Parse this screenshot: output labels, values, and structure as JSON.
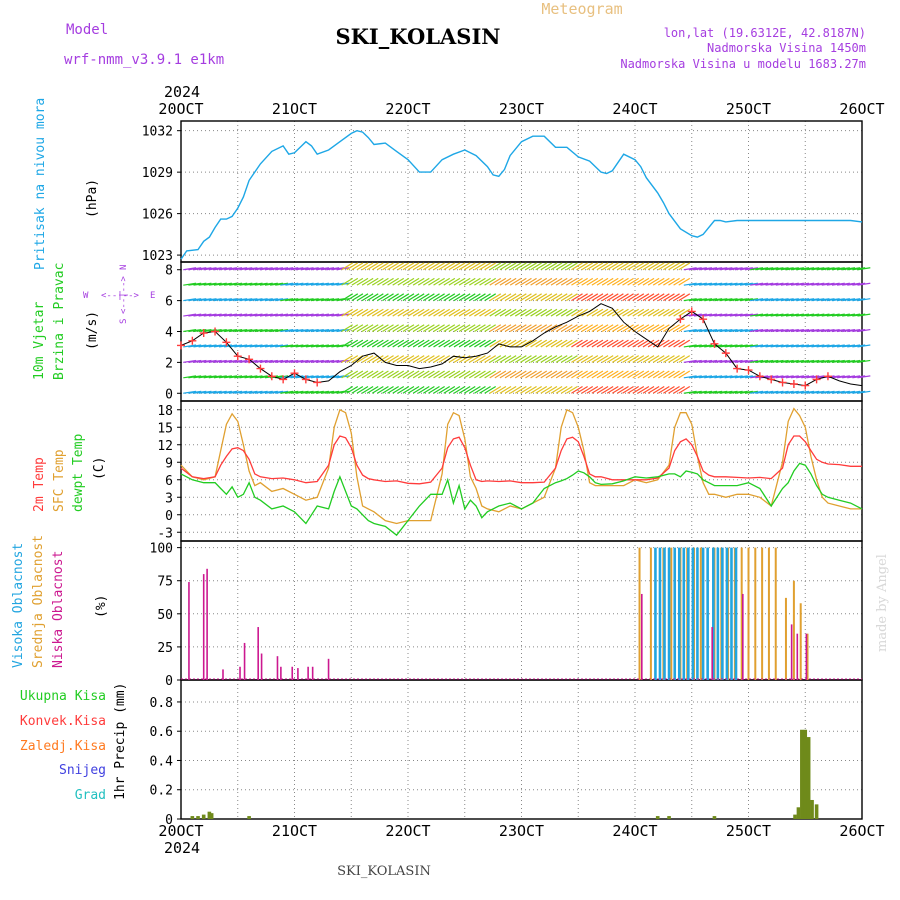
{
  "header": {
    "model_label": "Model",
    "model_name": "wrf-nmm_v3.9.1 e1km",
    "title": "SKI_KOLASIN",
    "meteogram_label": "Meteogram",
    "lonlat": "lon,lat (19.6312E, 42.8187N)",
    "altitude": "Nadmorska Visina 1450m",
    "model_altitude": "Nadmorska Visina u modelu 1683.27m",
    "footer_title": "SKI_KOLASIN",
    "watermark": "made by Angel",
    "year_top": "2024",
    "year_bottom": "2024"
  },
  "colors": {
    "pressure": "#1ea7e6",
    "temp2m": "#ff3b3b",
    "sfc_temp": "#e0a030",
    "dewpt": "#22cc22",
    "high_cloud": "#22a5e0",
    "mid_cloud": "#e0a030",
    "low_cloud": "#cc1890",
    "precip": "#6f8a1a",
    "wind_axis": "#a53de0"
  },
  "chart_data": [
    {
      "type": "line",
      "title": "",
      "xlabel": "",
      "ylabel_main": "Pritisak na nivou mora",
      "ylabel_unit": "(hPa)",
      "x_ticks": [
        "20OCT",
        "21OCT",
        "22OCT",
        "23OCT",
        "24OCT",
        "25OCT",
        "26OCT"
      ],
      "x_range_days": [
        0,
        6
      ],
      "ylim": [
        1022.5,
        1032.7
      ],
      "y_ticks": [
        1023,
        1026,
        1029,
        1032
      ],
      "grid": true,
      "series": [
        {
          "name": "Pritisak na nivou mora",
          "x": [
            0.0,
            0.05,
            0.15,
            0.2,
            0.25,
            0.3,
            0.35,
            0.4,
            0.45,
            0.5,
            0.55,
            0.6,
            0.7,
            0.8,
            0.9,
            0.95,
            1.0,
            1.05,
            1.1,
            1.15,
            1.2,
            1.3,
            1.4,
            1.5,
            1.55,
            1.6,
            1.65,
            1.7,
            1.8,
            1.9,
            2.0,
            2.1,
            2.2,
            2.3,
            2.4,
            2.5,
            2.6,
            2.7,
            2.75,
            2.8,
            2.85,
            2.9,
            3.0,
            3.1,
            3.2,
            3.3,
            3.4,
            3.5,
            3.6,
            3.7,
            3.75,
            3.8,
            3.9,
            4.0,
            4.05,
            4.1,
            4.2,
            4.25,
            4.3,
            4.4,
            4.5,
            4.55,
            4.6,
            4.7,
            4.75,
            4.8,
            4.9,
            5.0,
            5.1,
            5.2,
            5.25,
            5.3,
            5.4,
            5.5,
            5.55,
            5.6,
            5.7,
            5.8,
            5.9,
            6.0
          ],
          "values": [
            1022.7,
            1023.3,
            1023.4,
            1024.0,
            1024.3,
            1025.0,
            1025.6,
            1025.6,
            1025.8,
            1026.4,
            1027.2,
            1028.4,
            1029.6,
            1030.5,
            1030.9,
            1030.3,
            1030.4,
            1030.8,
            1031.2,
            1030.9,
            1030.3,
            1030.6,
            1031.2,
            1031.8,
            1032.0,
            1031.9,
            1031.5,
            1031.0,
            1031.1,
            1030.5,
            1029.9,
            1029.0,
            1029.0,
            1029.9,
            1030.3,
            1030.6,
            1030.2,
            1029.4,
            1028.8,
            1028.7,
            1029.2,
            1030.2,
            1031.2,
            1031.6,
            1031.6,
            1030.8,
            1030.8,
            1030.1,
            1029.8,
            1029.0,
            1028.9,
            1029.1,
            1030.3,
            1029.9,
            1029.4,
            1028.6,
            1027.5,
            1026.8,
            1026.0,
            1024.9,
            1024.4,
            1024.3,
            1024.5,
            1025.5,
            1025.5,
            1025.4,
            1025.5,
            1025.5,
            1025.5,
            1025.5,
            1025.5,
            1025.5,
            1025.5,
            1025.5,
            1025.5,
            1025.5,
            1025.5,
            1025.5,
            1025.5,
            1025.4
          ]
        }
      ]
    },
    {
      "type": "line",
      "title": "",
      "ylabel_main": "10m Vjetar",
      "ylabel_sub": "Brzina i Pravac",
      "ylabel_unit": "(m/s)",
      "direction_legend": [
        "W",
        "<--|-->",
        "E",
        "S",
        "<--|-->",
        "N"
      ],
      "ylim": [
        -0.5,
        8.5
      ],
      "y_ticks": [
        0,
        2,
        4,
        6,
        8
      ],
      "grid": true,
      "series": [
        {
          "name": "10m Vjetar",
          "x": [
            0.0,
            0.1,
            0.2,
            0.3,
            0.4,
            0.5,
            0.6,
            0.7,
            0.8,
            0.9,
            1.0,
            1.1,
            1.2,
            1.3,
            1.4,
            1.5,
            1.6,
            1.7,
            1.8,
            1.9,
            2.0,
            2.1,
            2.2,
            2.3,
            2.4,
            2.5,
            2.6,
            2.7,
            2.8,
            2.9,
            3.0,
            3.1,
            3.2,
            3.3,
            3.4,
            3.5,
            3.6,
            3.7,
            3.8,
            3.9,
            4.0,
            4.1,
            4.2,
            4.3,
            4.4,
            4.5,
            4.6,
            4.7,
            4.8,
            4.9,
            5.0,
            5.1,
            5.2,
            5.3,
            5.4,
            5.5,
            5.6,
            5.7,
            5.8,
            5.9,
            6.0
          ],
          "values": [
            3.1,
            3.4,
            3.9,
            4.0,
            3.3,
            2.4,
            2.2,
            1.6,
            1.1,
            0.9,
            1.3,
            0.9,
            0.7,
            0.8,
            1.4,
            1.8,
            2.4,
            2.6,
            2.0,
            1.8,
            1.8,
            1.6,
            1.7,
            1.9,
            2.4,
            2.3,
            2.4,
            2.6,
            3.2,
            3.0,
            3.0,
            3.4,
            3.9,
            4.3,
            4.6,
            5.0,
            5.3,
            5.8,
            5.5,
            4.6,
            4.0,
            3.5,
            3.0,
            4.2,
            4.8,
            5.3,
            4.8,
            3.2,
            2.6,
            1.6,
            1.5,
            1.1,
            0.9,
            0.7,
            0.6,
            0.5,
            0.9,
            1.1,
            0.8,
            0.6,
            0.5
          ]
        }
      ]
    },
    {
      "type": "line",
      "title": "",
      "ylabel_a": "2m Temp",
      "ylabel_b": "SFC Temp",
      "ylabel_c": "dewpt Temp",
      "ylabel_unit": "(C)",
      "ylim": [
        -4.5,
        19.5
      ],
      "y_ticks": [
        -3,
        0,
        3,
        6,
        9,
        12,
        15,
        18
      ],
      "grid": true,
      "x": [
        0.0,
        0.1,
        0.2,
        0.3,
        0.35,
        0.4,
        0.45,
        0.5,
        0.55,
        0.6,
        0.65,
        0.7,
        0.8,
        0.9,
        1.0,
        1.1,
        1.2,
        1.3,
        1.35,
        1.4,
        1.45,
        1.5,
        1.55,
        1.6,
        1.65,
        1.7,
        1.8,
        1.9,
        2.0,
        2.1,
        2.2,
        2.3,
        2.35,
        2.4,
        2.45,
        2.5,
        2.55,
        2.6,
        2.65,
        2.7,
        2.8,
        2.9,
        3.0,
        3.1,
        3.2,
        3.3,
        3.35,
        3.4,
        3.45,
        3.5,
        3.55,
        3.6,
        3.65,
        3.7,
        3.8,
        3.9,
        4.0,
        4.1,
        4.2,
        4.3,
        4.35,
        4.4,
        4.45,
        4.5,
        4.55,
        4.6,
        4.65,
        4.7,
        4.8,
        4.9,
        5.0,
        5.1,
        5.2,
        5.3,
        5.35,
        5.4,
        5.45,
        5.5,
        5.55,
        5.6,
        5.65,
        5.7,
        5.8,
        5.9,
        6.0
      ],
      "series": [
        {
          "name": "2m Temp",
          "values": [
            8.0,
            6.5,
            6.2,
            6.5,
            8.5,
            10.0,
            11.3,
            11.5,
            11.0,
            9.5,
            7.0,
            6.5,
            6.2,
            6.3,
            6.0,
            5.5,
            5.7,
            8.5,
            12.0,
            13.5,
            13.2,
            11.5,
            8.5,
            6.8,
            6.2,
            6.0,
            5.7,
            5.8,
            5.4,
            5.3,
            5.6,
            8.0,
            11.5,
            13.0,
            13.3,
            11.5,
            8.5,
            6.0,
            5.7,
            5.8,
            5.7,
            5.8,
            5.5,
            5.5,
            5.6,
            8.0,
            11.0,
            13.0,
            13.3,
            12.5,
            10.0,
            7.0,
            6.5,
            6.5,
            6.0,
            6.0,
            6.0,
            6.0,
            6.3,
            8.0,
            11.0,
            12.5,
            13.0,
            12.0,
            10.0,
            7.5,
            6.8,
            6.5,
            6.5,
            6.4,
            6.3,
            6.4,
            6.2,
            8.0,
            12.0,
            13.5,
            13.5,
            12.5,
            11.0,
            9.5,
            9.0,
            8.7,
            8.6,
            8.3,
            8.3
          ]
        },
        {
          "name": "SFC Temp",
          "values": [
            8.5,
            6.5,
            6.0,
            6.5,
            11.0,
            15.5,
            17.3,
            16.0,
            12.0,
            7.5,
            5.0,
            5.5,
            4.0,
            4.5,
            3.5,
            2.5,
            3.0,
            8.0,
            15.0,
            18.0,
            17.5,
            14.0,
            6.5,
            1.5,
            1.0,
            0.5,
            -1.0,
            -1.5,
            -1.0,
            -1.0,
            -1.0,
            7.0,
            15.5,
            17.5,
            17.0,
            13.0,
            6.5,
            4.5,
            1.5,
            1.0,
            0.5,
            1.5,
            1.0,
            2.0,
            3.0,
            8.0,
            15.0,
            18.0,
            17.5,
            15.0,
            11.0,
            5.5,
            5.0,
            5.0,
            5.0,
            5.0,
            6.0,
            5.5,
            6.0,
            8.5,
            15.0,
            17.5,
            17.5,
            15.5,
            10.0,
            5.5,
            3.5,
            3.5,
            3.0,
            3.5,
            3.5,
            3.0,
            1.5,
            9.0,
            16.0,
            18.2,
            17.0,
            15.0,
            10.0,
            6.0,
            3.0,
            2.0,
            1.5,
            1.0,
            1.0
          ]
        },
        {
          "name": "dewpt Temp",
          "values": [
            7.0,
            6.0,
            5.5,
            5.5,
            4.5,
            3.5,
            4.8,
            3.0,
            3.5,
            5.5,
            3.0,
            2.5,
            1.0,
            1.5,
            0.5,
            -1.5,
            1.5,
            1.0,
            4.0,
            6.5,
            4.0,
            1.5,
            1.0,
            0.0,
            -1.0,
            -1.5,
            -2.0,
            -3.5,
            -1.0,
            1.5,
            3.5,
            3.5,
            6.0,
            2.0,
            5.0,
            1.0,
            2.5,
            1.5,
            -0.5,
            0.5,
            1.5,
            2.0,
            1.0,
            2.0,
            4.5,
            5.5,
            5.8,
            6.2,
            6.8,
            7.5,
            7.2,
            6.5,
            5.5,
            5.2,
            5.3,
            5.8,
            6.5,
            6.3,
            6.5,
            7.0,
            7.0,
            6.5,
            7.5,
            7.3,
            7.0,
            6.0,
            5.5,
            5.0,
            5.0,
            5.0,
            5.5,
            4.5,
            1.5,
            4.5,
            5.5,
            7.5,
            8.8,
            8.5,
            7.0,
            5.0,
            3.5,
            3.0,
            2.5,
            2.0,
            1.0
          ]
        }
      ]
    },
    {
      "type": "bar",
      "title": "",
      "ylabel_a": "Visoka Oblacnost",
      "ylabel_b": "Srednja Oblacnost",
      "ylabel_c": "Niska Oblacnost",
      "ylabel_unit": "(%)",
      "ylim": [
        0,
        105
      ],
      "y_ticks": [
        0,
        25,
        50,
        75,
        100
      ],
      "grid": true,
      "series": [
        {
          "name": "Niska Oblacnost",
          "x": [
            0.07,
            0.2,
            0.23,
            0.37,
            0.52,
            0.56,
            0.68,
            0.71,
            0.85,
            0.88,
            0.98,
            1.03,
            1.12,
            1.16,
            1.3,
            4.06,
            4.68,
            4.95,
            5.38,
            5.43,
            5.51
          ],
          "values": [
            74,
            80,
            84,
            8,
            10,
            28,
            40,
            20,
            18,
            10,
            10,
            9,
            10,
            10,
            16,
            65,
            40,
            65,
            42,
            35,
            35
          ]
        },
        {
          "name": "Srednja Oblacnost",
          "x": [
            4.04,
            4.14,
            4.25,
            4.32,
            4.4,
            4.46,
            4.52,
            4.58,
            4.64,
            4.7,
            4.76,
            4.82,
            4.88,
            4.94,
            5.0,
            5.06,
            5.12,
            5.18,
            5.24,
            5.33,
            5.4,
            5.46,
            5.52
          ],
          "values": [
            100,
            100,
            100,
            100,
            100,
            100,
            100,
            100,
            100,
            100,
            100,
            100,
            100,
            100,
            100,
            100,
            100,
            100,
            100,
            62,
            75,
            58,
            35
          ]
        },
        {
          "name": "Visoka Oblacnost",
          "x": [
            4.18,
            4.22,
            4.26,
            4.3,
            4.35,
            4.39,
            4.43,
            4.47,
            4.51,
            4.55,
            4.6,
            4.64,
            4.69,
            4.73,
            4.77,
            4.81,
            4.85,
            4.89
          ],
          "values": [
            100,
            100,
            100,
            100,
            100,
            100,
            100,
            100,
            100,
            100,
            100,
            100,
            100,
            100,
            100,
            100,
            100,
            100
          ]
        }
      ]
    },
    {
      "type": "bar",
      "title": "",
      "ylabel": "1hr Precip (mm)",
      "legend": [
        "Ukupna Kisa",
        "Konvek.Kisa",
        "Zaledj.Kisa",
        "Snijeg",
        "Grad"
      ],
      "ylim": [
        0,
        0.95
      ],
      "y_ticks": [
        0,
        0.2,
        0.4,
        0.6,
        0.8
      ],
      "grid": true,
      "x_ticks": [
        "20OCT",
        "21OCT",
        "22OCT",
        "23OCT",
        "24OCT",
        "25OCT",
        "26OCT"
      ],
      "series": [
        {
          "name": "Ukupna Kisa",
          "x": [
            0.1,
            0.15,
            0.2,
            0.25,
            0.27,
            0.6,
            4.2,
            4.3,
            4.7,
            5.41,
            5.44,
            5.47,
            5.5,
            5.53,
            5.56,
            5.6
          ],
          "values": [
            0.02,
            0.02,
            0.03,
            0.05,
            0.04,
            0.02,
            0.02,
            0.02,
            0.02,
            0.03,
            0.08,
            0.61,
            0.61,
            0.56,
            0.13,
            0.1
          ]
        }
      ]
    }
  ]
}
